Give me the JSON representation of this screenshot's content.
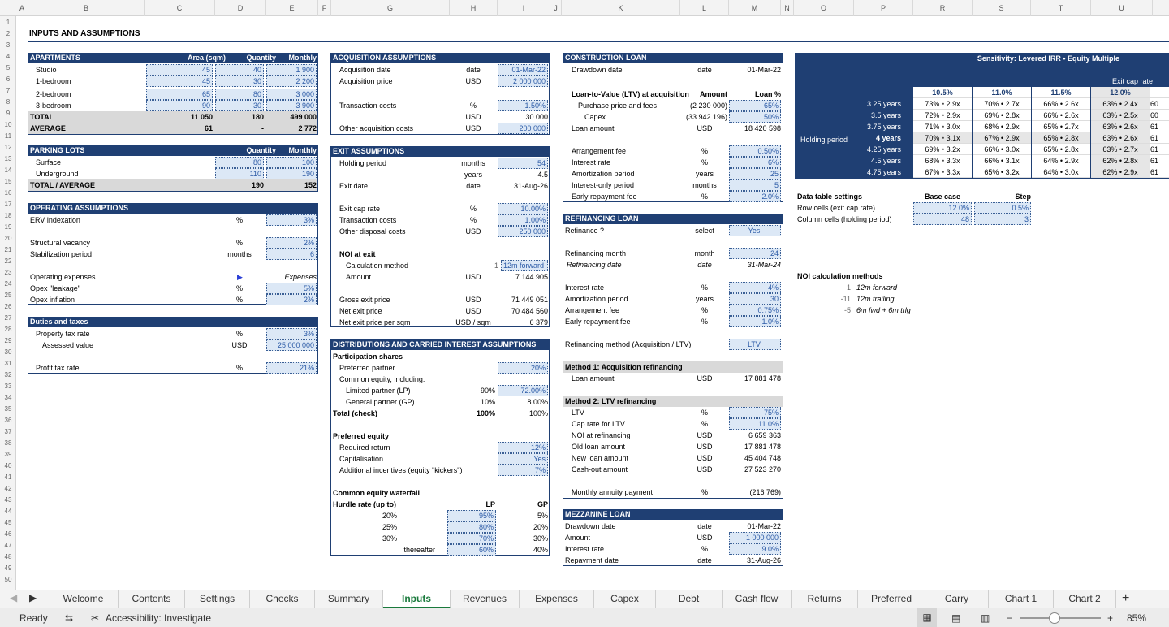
{
  "columns": [
    "A",
    "B",
    "C",
    "D",
    "E",
    "F",
    "G",
    "H",
    "I",
    "J",
    "K",
    "L",
    "M",
    "N",
    "O",
    "P",
    "R",
    "S",
    "T",
    "U"
  ],
  "row_numbers": [
    "1",
    "2",
    "3",
    "4",
    "5",
    "6",
    "7",
    "8",
    "9",
    "10",
    "11",
    "12",
    "13",
    "14",
    "15",
    "16",
    "17",
    "18",
    "19",
    "20",
    "21",
    "22",
    "23",
    "24",
    "25",
    "26",
    "27",
    "28",
    "29",
    "30",
    "31",
    "32",
    "33",
    "34",
    "35",
    "36",
    "37",
    "38",
    "39",
    "40",
    "41",
    "42",
    "43",
    "44",
    "45",
    "46",
    "47",
    "48",
    "49",
    "50"
  ],
  "title": "INPUTS AND ASSUMPTIONS",
  "apartments": {
    "header": "APARTMENTS",
    "col_area": "Area (sqm)",
    "col_qty": "Quantity",
    "col_rent": "Monthly rent",
    "rows": [
      {
        "name": "Studio",
        "area": "45",
        "qty": "40",
        "rent": "1 900"
      },
      {
        "name": "1-bedroom",
        "area": "45",
        "qty": "30",
        "rent": "2 200"
      },
      {
        "name": "2-bedroom",
        "area": "65",
        "qty": "80",
        "rent": "3 000"
      },
      {
        "name": "3-bedroom",
        "area": "90",
        "qty": "30",
        "rent": "3 900"
      }
    ],
    "total_label": "TOTAL",
    "total_area": "11 050",
    "total_qty": "180",
    "total_rent": "499 000",
    "avg_label": "AVERAGE",
    "avg_area": "61",
    "avg_qty": "-",
    "avg_rent": "2 772"
  },
  "parking": {
    "header": "PARKING LOTS",
    "col_qty": "Quantity",
    "col_rent": "Monthly rent",
    "rows": [
      {
        "name": "Surface",
        "qty": "80",
        "rent": "100"
      },
      {
        "name": "Underground",
        "qty": "110",
        "rent": "190"
      }
    ],
    "total_label": "TOTAL / AVERAGE",
    "total_qty": "190",
    "total_rent": "152"
  },
  "operating": {
    "header": "OPERATING ASSUMPTIONS",
    "erv_label": "ERV indexation",
    "erv_unit": "%",
    "erv": "3%",
    "vac_label": "Structural vacancy",
    "vac_unit": "%",
    "vac": "2%",
    "stab_label": "Stabilization period",
    "stab_unit": "months",
    "stab": "6",
    "opex_label": "Operating expenses",
    "opex_val": "Expenses",
    "leak_label": "Opex \"leakage\"",
    "leak_unit": "%",
    "leak": "5%",
    "infl_label": "Opex inflation",
    "infl_unit": "%",
    "infl": "2%"
  },
  "duties": {
    "header": "Duties and taxes",
    "prop_label": "Property tax rate",
    "prop_unit": "%",
    "prop": "3%",
    "assess_label": "Assessed value",
    "assess_unit": "USD",
    "assess": "25 000 000",
    "profit_label": "Profit tax rate",
    "profit_unit": "%",
    "profit": "21%"
  },
  "acquisition": {
    "header": "ACQUISITION ASSUMPTIONS",
    "date_label": "Acquisition date",
    "date_unit": "date",
    "date": "01-Mar-22",
    "price_label": "Acquisition price",
    "price_unit": "USD",
    "price": "2 000 000",
    "tc_label": "Transaction costs",
    "tc_unit": "%",
    "tc": "1.50%",
    "tc_usd_unit": "USD",
    "tc_usd": "30 000",
    "other_label": "Other acquisition costs",
    "other_unit": "USD",
    "other": "200 000"
  },
  "exit": {
    "header": "EXIT ASSUMPTIONS",
    "hold_label": "Holding period",
    "hold_unit": "months",
    "hold": "54",
    "hold_y_unit": "years",
    "hold_y": "4.5",
    "exit_date_label": "Exit date",
    "exit_date_unit": "date",
    "exit_date": "31-Aug-26",
    "cap_label": "Exit cap rate",
    "cap_unit": "%",
    "cap": "10.00%",
    "tc_label": "Transaction costs",
    "tc_unit": "%",
    "tc": "1.00%",
    "disp_label": "Other disposal costs",
    "disp_unit": "USD",
    "disp": "250 000",
    "noi_label": "NOI at exit",
    "calc_label": "Calculation method",
    "calc_num": "1",
    "calc": "12m forward",
    "amt_label": "Amount",
    "amt_unit": "USD",
    "amt": "7 144 905",
    "gross_label": "Gross exit price",
    "gross_unit": "USD",
    "gross": "71 449 051",
    "net_label": "Net exit price",
    "net_unit": "USD",
    "net": "70 484 560",
    "sqm_label": "Net exit price per sqm",
    "sqm_unit": "USD / sqm",
    "sqm": "6 379"
  },
  "distributions": {
    "header": "DISTRIBUTIONS AND CARRIED INTEREST ASSUMPTIONS",
    "part_label": "Participation shares",
    "pref_label": "Preferred partner",
    "pref": "20%",
    "common_label": "Common equity, including:",
    "lp_label": "Limited partner (LP)",
    "lp_a": "90%",
    "lp_b": "72.00%",
    "gp_label": "General partner (GP)",
    "gp_a": "10%",
    "gp_b": "8.00%",
    "total_label": "Total (check)",
    "total_a": "100%",
    "total_b": "100%",
    "pe_label": "Preferred equity",
    "req_label": "Required return",
    "req": "12%",
    "cap_label": "Capitalisation",
    "cap": "Yes",
    "add_label": "Additional incentives (equity \"kickers\")",
    "add": "7%",
    "wf_label": "Common equity waterfall",
    "hurdle_label": "Hurdle rate (up to)",
    "lp_col": "LP",
    "gp_col": "GP",
    "wf_rows": [
      {
        "h": "20%",
        "lp": "95%",
        "gp": "5%"
      },
      {
        "h": "25%",
        "lp": "80%",
        "gp": "20%"
      },
      {
        "h": "30%",
        "lp": "70%",
        "gp": "30%"
      },
      {
        "h": "thereafter",
        "lp": "60%",
        "gp": "40%"
      }
    ]
  },
  "construction": {
    "header": "CONSTRUCTION LOAN",
    "draw_label": "Drawdown date",
    "draw_unit": "date",
    "draw": "01-Mar-22",
    "ltv_label": "Loan-to-Value (LTV) at acquisition",
    "amt_col": "Amount",
    "loan_col": "Loan %",
    "pp_label": "Purchase price and fees",
    "pp_amt": "(2 230 000)",
    "pp_pct": "65%",
    "capex_label": "Capex",
    "capex_amt": "(33 942 196)",
    "capex_pct": "50%",
    "loan_label": "Loan amount",
    "loan_unit": "USD",
    "loan": "18 420 598",
    "arr_label": "Arrangement fee",
    "arr_unit": "%",
    "arr": "0.50%",
    "int_label": "Interest rate",
    "int_unit": "%",
    "int": "6%",
    "amort_label": "Amortization period",
    "amort_unit": "years",
    "amort": "25",
    "io_label": "Interest-only period",
    "io_unit": "months",
    "io": "5",
    "early_label": "Early repayment fee",
    "early_unit": "%",
    "early": "2.0%"
  },
  "refinancing": {
    "header": "REFINANCING LOAN",
    "ref_label": "Refinance ?",
    "ref_unit": "select",
    "ref": "Yes",
    "month_label": "Refinancing month",
    "month_unit": "month",
    "month": "24",
    "date_label": "Refinancing date",
    "date_unit": "date",
    "date": "31-Mar-24",
    "int_label": "Interest rate",
    "int_unit": "%",
    "int": "4%",
    "amort_label": "Amortization period",
    "amort_unit": "years",
    "amort": "30",
    "arr_label": "Arrangement fee",
    "arr_unit": "%",
    "arr": "0.75%",
    "early_label": "Early repayment fee",
    "early_unit": "%",
    "early": "1.0%",
    "method_label": "Refinancing method (Acquisition / LTV)",
    "method": "LTV",
    "m1_label": "Method 1: Acquisition refinancing",
    "m1_loan_label": "Loan amount",
    "m1_loan_unit": "USD",
    "m1_loan": "17 881 478",
    "m2_label": "Method 2: LTV refinancing",
    "ltv_label": "LTV",
    "ltv_unit": "%",
    "ltv": "75%",
    "capltv_label": "Cap rate for LTV",
    "capltv_unit": "%",
    "capltv": "11.0%",
    "noi_label": "NOI at refinancing",
    "noi_unit": "USD",
    "noi": "6 659 363",
    "old_label": "Old loan amount",
    "old_unit": "USD",
    "old": "17 881 478",
    "new_label": "New loan amount",
    "new_unit": "USD",
    "new": "45 404 748",
    "cash_label": "Cash-out amount",
    "cash_unit": "USD",
    "cash": "27 523 270",
    "annuity_label": "Monthly annuity payment",
    "annuity_unit": "%",
    "annuity": "(216 769)"
  },
  "mezzanine": {
    "header": "MEZZANINE LOAN",
    "draw_label": "Drawdown date",
    "draw_unit": "date",
    "draw": "01-Mar-22",
    "amt_label": "Amount",
    "amt_unit": "USD",
    "amt": "1 000 000",
    "int_label": "Interest rate",
    "int_unit": "%",
    "int": "9.0%",
    "rep_label": "Repayment date",
    "rep_unit": "date",
    "rep": "31-Aug-26"
  },
  "sensitivity": {
    "title": "Sensitivity: Levered IRR • Equity Multiple",
    "col_title": "Exit cap rate",
    "row_title": "Holding period",
    "cols": [
      "10.5%",
      "11.0%",
      "11.5%",
      "12.0%"
    ],
    "rows": [
      {
        "label": "3.25 years",
        "cells": [
          "73% • 2.9x",
          "70% • 2.7x",
          "66% • 2.6x",
          "63% • 2.4x"
        ],
        "extra": "60"
      },
      {
        "label": "3.5 years",
        "cells": [
          "72% • 2.9x",
          "69% • 2.8x",
          "66% • 2.6x",
          "63% • 2.5x"
        ],
        "extra": "60"
      },
      {
        "label": "3.75 years",
        "cells": [
          "71% • 3.0x",
          "68% • 2.9x",
          "65% • 2.7x",
          "63% • 2.6x"
        ],
        "extra": "61"
      },
      {
        "label": "4 years",
        "cells": [
          "70% • 3.1x",
          "67% • 2.9x",
          "65% • 2.8x",
          "63% • 2.6x"
        ],
        "extra": "61"
      },
      {
        "label": "4.25 years",
        "cells": [
          "69% • 3.2x",
          "66% • 3.0x",
          "65% • 2.8x",
          "63% • 2.7x"
        ],
        "extra": "61"
      },
      {
        "label": "4.5 years",
        "cells": [
          "68% • 3.3x",
          "66% • 3.1x",
          "64% • 2.9x",
          "62% • 2.8x"
        ],
        "extra": "61"
      },
      {
        "label": "4.75 years",
        "cells": [
          "67% • 3.3x",
          "65% • 3.2x",
          "64% • 3.0x",
          "62% • 2.9x"
        ],
        "extra": "61"
      }
    ],
    "dt_label": "Data table settings",
    "base_col": "Base case",
    "step_col": "Step",
    "row_cells_label": "Row cells (exit cap rate)",
    "row_base": "12.0%",
    "row_step": "0.5%",
    "col_cells_label": "Column cells (holding period)",
    "col_base": "48",
    "col_step": "3"
  },
  "noi_methods": {
    "title": "NOI calculation methods",
    "items": [
      {
        "n": "1",
        "label": "12m forward"
      },
      {
        "n": "-11",
        "label": "12m trailing"
      },
      {
        "n": "-5",
        "label": "6m fwd + 6m trlg"
      }
    ]
  },
  "tabs": [
    "Welcome",
    "Contents",
    "Settings",
    "Checks",
    "Summary",
    "Inputs",
    "Revenues",
    "Expenses",
    "Capex",
    "Debt",
    "Cash flow",
    "Returns",
    "Preferred",
    "Carry",
    "Chart 1",
    "Chart 2"
  ],
  "status": {
    "ready": "Ready",
    "accessibility": "Accessibility: Investigate",
    "zoom": "85%"
  },
  "colors": {
    "header_blue": "#1f3f73",
    "input_blue": "#dce8f6",
    "active_tab": "#1a7a3c"
  }
}
